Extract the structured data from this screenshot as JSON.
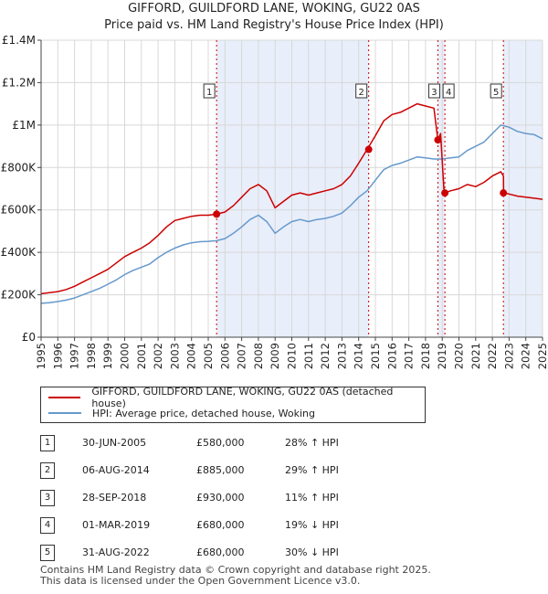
{
  "chart_data": {
    "type": "line",
    "title": "GIFFORD, GUILDFORD LANE, WOKING, GU22 0AS",
    "subtitle": "Price paid vs. HM Land Registry's House Price Index (HPI)",
    "xlim": [
      1995,
      2025
    ],
    "ylim": [
      0,
      1400000
    ],
    "y_ticks": [
      0,
      200000,
      400000,
      600000,
      800000,
      1000000,
      1200000,
      1400000
    ],
    "y_tick_labels": [
      "£0",
      "£200K",
      "£400K",
      "£600K",
      "£800K",
      "£1M",
      "£1.2M",
      "£1.4M"
    ],
    "x_ticks": [
      1995,
      1996,
      1997,
      1998,
      1999,
      2000,
      2001,
      2002,
      2003,
      2004,
      2005,
      2006,
      2007,
      2008,
      2009,
      2010,
      2011,
      2012,
      2013,
      2014,
      2015,
      2016,
      2017,
      2018,
      2019,
      2020,
      2021,
      2022,
      2023,
      2024,
      2025
    ],
    "x_tick_labels": [
      "1995",
      "1996",
      "1997",
      "1998",
      "1999",
      "2000",
      "2001",
      "2002",
      "2003",
      "2004",
      "2005",
      "2006",
      "2007",
      "2008",
      "2009",
      "2010",
      "2011",
      "2012",
      "2013",
      "2014",
      "2015",
      "2016",
      "2017",
      "2018",
      "2019",
      "2020",
      "2021",
      "2022",
      "2023",
      "2024",
      "2025"
    ],
    "colors": {
      "property": "#cc0000",
      "hpi": "#6699cc",
      "shade": "#e8eefa",
      "grid": "#d8d8d8"
    },
    "series": [
      {
        "name": "GIFFORD, GUILDFORD LANE, WOKING, GU22 0AS (detached house)",
        "x": [
          1995.0,
          1995.5,
          1996.0,
          1996.5,
          1997.0,
          1997.5,
          1998.0,
          1998.5,
          1999.0,
          1999.5,
          2000.0,
          2000.5,
          2001.0,
          2001.5,
          2002.0,
          2002.5,
          2003.0,
          2003.5,
          2004.0,
          2004.5,
          2005.0,
          2005.5,
          2006.0,
          2006.5,
          2007.0,
          2007.5,
          2008.0,
          2008.5,
          2009.0,
          2009.5,
          2010.0,
          2010.5,
          2011.0,
          2011.5,
          2012.0,
          2012.5,
          2013.0,
          2013.5,
          2014.0,
          2014.5,
          2015.0,
          2015.5,
          2016.0,
          2016.5,
          2017.0,
          2017.5,
          2018.0,
          2018.5,
          2018.74,
          2018.9,
          2019.1,
          2019.16,
          2019.5,
          2020.0,
          2020.5,
          2021.0,
          2021.5,
          2022.0,
          2022.5,
          2022.66,
          2022.67,
          2023.0,
          2023.5,
          2024.0,
          2024.5,
          2025.0
        ],
        "values": [
          205000,
          210000,
          215000,
          225000,
          240000,
          260000,
          280000,
          300000,
          320000,
          350000,
          380000,
          400000,
          420000,
          445000,
          480000,
          520000,
          550000,
          560000,
          570000,
          575000,
          575000,
          580000,
          590000,
          620000,
          660000,
          700000,
          720000,
          690000,
          610000,
          640000,
          670000,
          680000,
          670000,
          680000,
          690000,
          700000,
          720000,
          760000,
          820000,
          885000,
          950000,
          1020000,
          1050000,
          1060000,
          1080000,
          1100000,
          1090000,
          1080000,
          930000,
          960000,
          700000,
          680000,
          690000,
          700000,
          720000,
          710000,
          730000,
          760000,
          780000,
          760000,
          680000,
          675000,
          665000,
          660000,
          655000,
          650000
        ]
      },
      {
        "name": "HPI: Average price, detached house, Woking",
        "x": [
          1995.0,
          1995.5,
          1996.0,
          1996.5,
          1997.0,
          1997.5,
          1998.0,
          1998.5,
          1999.0,
          1999.5,
          2000.0,
          2000.5,
          2001.0,
          2001.5,
          2002.0,
          2002.5,
          2003.0,
          2003.5,
          2004.0,
          2004.5,
          2005.0,
          2005.5,
          2006.0,
          2006.5,
          2007.0,
          2007.5,
          2008.0,
          2008.5,
          2009.0,
          2009.5,
          2010.0,
          2010.5,
          2011.0,
          2011.5,
          2012.0,
          2012.5,
          2013.0,
          2013.5,
          2014.0,
          2014.5,
          2015.0,
          2015.5,
          2016.0,
          2016.5,
          2017.0,
          2017.5,
          2018.0,
          2018.5,
          2019.0,
          2019.5,
          2020.0,
          2020.5,
          2021.0,
          2021.5,
          2022.0,
          2022.5,
          2023.0,
          2023.5,
          2024.0,
          2024.5,
          2025.0
        ],
        "values": [
          160000,
          163000,
          168000,
          175000,
          185000,
          200000,
          215000,
          230000,
          250000,
          270000,
          295000,
          315000,
          330000,
          345000,
          375000,
          400000,
          420000,
          435000,
          445000,
          450000,
          452000,
          455000,
          465000,
          490000,
          520000,
          555000,
          575000,
          545000,
          490000,
          520000,
          545000,
          555000,
          545000,
          555000,
          560000,
          570000,
          585000,
          620000,
          660000,
          690000,
          740000,
          790000,
          810000,
          820000,
          835000,
          850000,
          845000,
          840000,
          840000,
          845000,
          850000,
          880000,
          900000,
          920000,
          960000,
          1000000,
          990000,
          970000,
          960000,
          955000,
          935000
        ]
      }
    ],
    "sales": [
      {
        "label": "1",
        "x": 2005.5,
        "y": 580000
      },
      {
        "label": "2",
        "x": 2014.6,
        "y": 885000
      },
      {
        "label": "3",
        "x": 2018.74,
        "y": 930000
      },
      {
        "label": "4",
        "x": 2019.16,
        "y": 680000
      },
      {
        "label": "5",
        "x": 2022.66,
        "y": 680000
      }
    ],
    "shaded_ranges": [
      [
        2005.5,
        2014.6
      ],
      [
        2018.74,
        2019.16
      ],
      [
        2022.66,
        2025.0
      ]
    ]
  },
  "legend": {
    "property": "GIFFORD, GUILDFORD LANE, WOKING, GU22 0AS (detached house)",
    "hpi": "HPI: Average price, detached house, Woking"
  },
  "sales_table": [
    {
      "num": "1",
      "date": "30-JUN-2005",
      "price": "£580,000",
      "hpi": "28% ↑ HPI"
    },
    {
      "num": "2",
      "date": "06-AUG-2014",
      "price": "£885,000",
      "hpi": "29% ↑ HPI"
    },
    {
      "num": "3",
      "date": "28-SEP-2018",
      "price": "£930,000",
      "hpi": "11% ↑ HPI"
    },
    {
      "num": "4",
      "date": "01-MAR-2019",
      "price": "£680,000",
      "hpi": "19% ↓ HPI"
    },
    {
      "num": "5",
      "date": "31-AUG-2022",
      "price": "£680,000",
      "hpi": "30% ↓ HPI"
    }
  ],
  "footer": {
    "line1": "Contains HM Land Registry data © Crown copyright and database right 2025.",
    "line2": "This data is licensed under the Open Government Licence v3.0."
  }
}
